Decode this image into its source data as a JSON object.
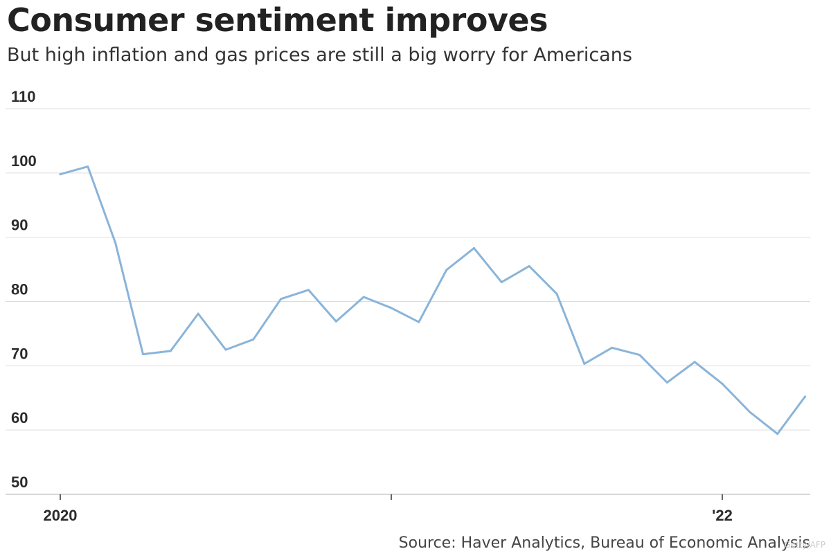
{
  "header": {
    "title": "Consumer sentiment improves",
    "subtitle": "But high inflation and gas prices are still a big worry for Americans"
  },
  "footer": {
    "source": "Source: Haver Analytics, Bureau of Economic Analysis",
    "watermark": "Getty/AFP"
  },
  "colors": {
    "line": "#8ab4d9",
    "grid": "#dddddd",
    "axis": "#cccccc",
    "text": "#2b2b2b"
  },
  "chart_data": {
    "type": "line",
    "title": "Consumer sentiment improves",
    "subtitle": "But high inflation and gas prices are still a big worry for Americans",
    "xlabel": "",
    "ylabel": "",
    "ylim": [
      50,
      110
    ],
    "yticks": [
      50,
      60,
      70,
      80,
      90,
      100,
      110
    ],
    "grid": true,
    "x_range": [
      0,
      26.7
    ],
    "x_ticks": [
      {
        "x": 0,
        "label": "2020"
      },
      {
        "x": 12,
        "label": ""
      },
      {
        "x": 24,
        "label": "'22"
      }
    ],
    "series": [
      {
        "name": "Consumer sentiment",
        "x": [
          0,
          1,
          2,
          3,
          4,
          5,
          6,
          7,
          8,
          9,
          10,
          11,
          12,
          13,
          14,
          15,
          16,
          17,
          18,
          19,
          20,
          21,
          22,
          23,
          24,
          25,
          26,
          27
        ],
        "values": [
          99.8,
          101.0,
          89.1,
          71.8,
          72.3,
          78.1,
          72.5,
          74.1,
          80.4,
          81.8,
          76.9,
          80.7,
          79.0,
          76.8,
          84.9,
          88.3,
          83.0,
          85.5,
          81.2,
          70.3,
          72.8,
          71.7,
          67.4,
          70.6,
          67.2,
          62.8,
          59.4,
          65.2
        ]
      }
    ]
  }
}
